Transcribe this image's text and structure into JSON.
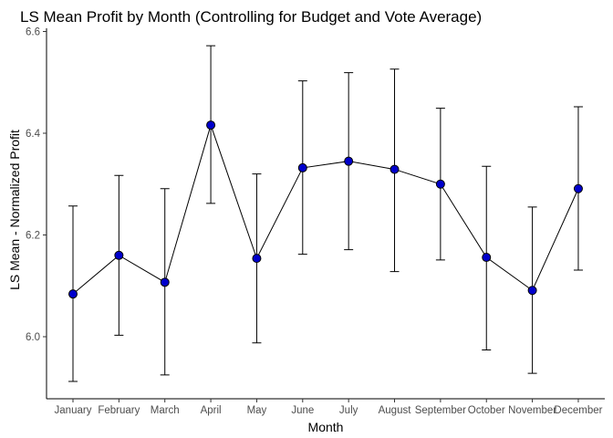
{
  "chart_data": {
    "type": "line",
    "title": "LS Mean Profit by Month (Controlling for Budget and Vote Average)",
    "xlabel": "Month",
    "ylabel": "LS Mean - Normalized Profit",
    "ylim": [
      5.9,
      6.6
    ],
    "yticks": [
      6.0,
      6.2,
      6.4,
      6.6
    ],
    "ytick_labels": [
      "6.0",
      "6.2",
      "6.4",
      "6.6"
    ],
    "grid": false,
    "categories": [
      "January",
      "February",
      "March",
      "April",
      "May",
      "June",
      "July",
      "August",
      "September",
      "October",
      "November",
      "December"
    ],
    "values": [
      6.084,
      6.16,
      6.107,
      6.416,
      6.154,
      6.332,
      6.345,
      6.329,
      6.3,
      6.156,
      6.091,
      6.291
    ],
    "lower": [
      5.912,
      6.003,
      5.925,
      6.262,
      5.988,
      6.162,
      6.171,
      6.128,
      6.151,
      5.974,
      5.928,
      6.131
    ],
    "upper": [
      6.257,
      6.317,
      6.291,
      6.572,
      6.32,
      6.503,
      6.519,
      6.526,
      6.449,
      6.335,
      6.255,
      6.452
    ],
    "colors": {
      "point_fill": "#0000cc",
      "line": "#000000",
      "error_bar": "#000000"
    }
  }
}
